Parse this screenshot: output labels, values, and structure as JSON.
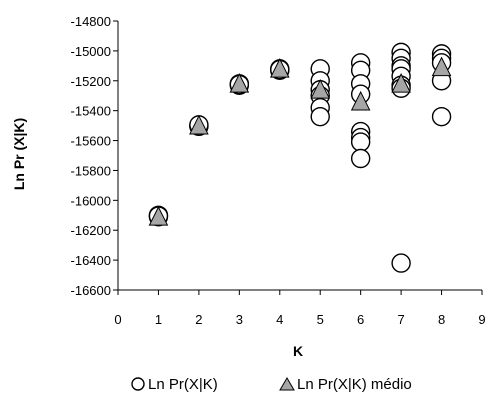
{
  "chart_data": {
    "type": "scatter",
    "xlabel": "K",
    "ylabel": "Ln Pr (X|K)",
    "xlim": [
      0,
      9
    ],
    "ylim": [
      -16600,
      -14800
    ],
    "x_ticks": [
      0,
      1,
      2,
      3,
      4,
      5,
      6,
      7,
      8,
      9
    ],
    "y_ticks": [
      -14800,
      -15000,
      -15200,
      -15400,
      -15600,
      -15800,
      -16000,
      -16200,
      -16400,
      -16600
    ],
    "x_tick_labels": [
      "0",
      "1",
      "2",
      "3",
      "4",
      "5",
      "6",
      "7",
      "8",
      "9"
    ],
    "y_tick_labels": [
      "-14800",
      "-15000",
      "-15200",
      "-15400",
      "-15600",
      "-15800",
      "-16000",
      "-16200",
      "-16400",
      "-16600"
    ],
    "grid": false,
    "legend_position": "bottom",
    "series": [
      {
        "name": "Ln Pr(X|K)",
        "marker": "circle",
        "color": "#ffffff",
        "edge_color": "#000000",
        "points": [
          [
            1,
            -16100
          ],
          [
            1,
            -16110
          ],
          [
            1,
            -16105
          ],
          [
            2,
            -15500
          ],
          [
            2,
            -15505
          ],
          [
            2,
            -15495
          ],
          [
            3,
            -15220
          ],
          [
            3,
            -15230
          ],
          [
            3,
            -15225
          ],
          [
            4,
            -15120
          ],
          [
            4,
            -15130
          ],
          [
            4,
            -15125
          ],
          [
            5,
            -15120
          ],
          [
            5,
            -15200
          ],
          [
            5,
            -15260
          ],
          [
            5,
            -15300
          ],
          [
            5,
            -15380
          ],
          [
            5,
            -15440
          ],
          [
            6,
            -15080
          ],
          [
            6,
            -15130
          ],
          [
            6,
            -15220
          ],
          [
            6,
            -15290
          ],
          [
            6,
            -15540
          ],
          [
            6,
            -15580
          ],
          [
            6,
            -15610
          ],
          [
            6,
            -15720
          ],
          [
            7,
            -15010
          ],
          [
            7,
            -15050
          ],
          [
            7,
            -15100
          ],
          [
            7,
            -15120
          ],
          [
            7,
            -15170
          ],
          [
            7,
            -15230
          ],
          [
            7,
            -15250
          ],
          [
            7,
            -16420
          ],
          [
            8,
            -15020
          ],
          [
            8,
            -15050
          ],
          [
            8,
            -15080
          ],
          [
            8,
            -15200
          ],
          [
            8,
            -15440
          ]
        ]
      },
      {
        "name": "Ln Pr(X|K) médio",
        "marker": "triangle",
        "color": "#a6a6a6",
        "edge_color": "#000000",
        "points": [
          [
            1,
            -16120
          ],
          [
            2,
            -15510
          ],
          [
            3,
            -15230
          ],
          [
            4,
            -15130
          ],
          [
            5,
            -15270
          ],
          [
            6,
            -15350
          ],
          [
            7,
            -15230
          ],
          [
            8,
            -15120
          ]
        ]
      }
    ]
  }
}
